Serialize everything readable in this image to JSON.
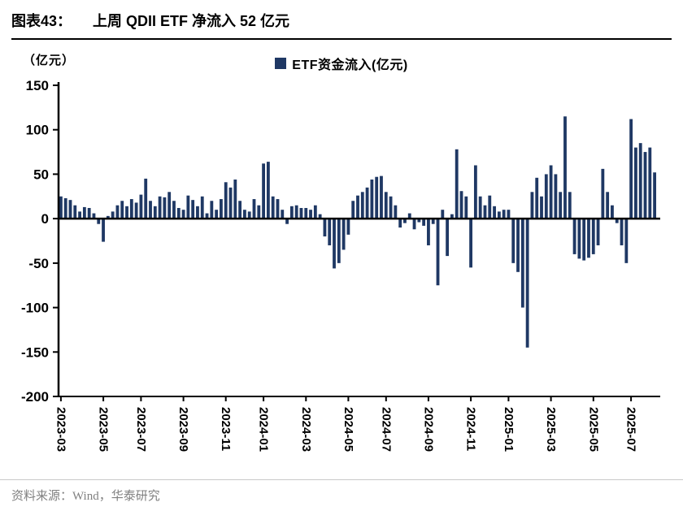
{
  "header": {
    "figure_label": "图表43：",
    "title": "上周 QDII ETF 净流入 52 亿元"
  },
  "chart": {
    "unit_label": "（亿元）",
    "legend_label": "ETF资金流入(亿元)"
  },
  "footer": {
    "source": "资料来源：Wind，华泰研究"
  },
  "chart_data": {
    "type": "bar",
    "title": "上周QDII ETF净流入52亿元",
    "series_name": "ETF资金流入(亿元)",
    "ylabel": "（亿元）",
    "ylim": [
      -200,
      150
    ],
    "y_ticks": [
      150,
      100,
      50,
      0,
      -50,
      -100,
      -150,
      -200
    ],
    "x_frequency": "weekly",
    "grid": false,
    "legend_position": "top-center",
    "bar_color": "#1F3864",
    "x_tick_labels": [
      "2023-03",
      "2023-05",
      "2023-07",
      "2023-09",
      "2023-11",
      "2024-01",
      "2024-03",
      "2024-05",
      "2024-07",
      "2024-09",
      "2024-11",
      "2025-01",
      "2025-03",
      "2025-05",
      "2025-07"
    ],
    "x_tick_week_index": [
      0,
      9,
      17,
      26,
      35,
      43,
      52,
      61,
      69,
      78,
      87,
      95,
      104,
      113,
      121
    ],
    "values": [
      25,
      23,
      21,
      15,
      8,
      13,
      12,
      6,
      -6,
      -26,
      3,
      8,
      15,
      20,
      14,
      22,
      18,
      27,
      45,
      20,
      14,
      25,
      24,
      30,
      20,
      12,
      10,
      26,
      21,
      14,
      25,
      6,
      20,
      10,
      22,
      41,
      35,
      44,
      20,
      10,
      8,
      22,
      15,
      62,
      64,
      25,
      22,
      10,
      -6,
      14,
      15,
      12,
      12,
      10,
      15,
      5,
      -20,
      -30,
      -56,
      -50,
      -35,
      -18,
      20,
      26,
      30,
      35,
      44,
      47,
      48,
      30,
      25,
      15,
      -10,
      -5,
      6,
      -12,
      -4,
      -8,
      -30,
      -6,
      -75,
      10,
      -42,
      5,
      78,
      31,
      25,
      -55,
      60,
      25,
      15,
      26,
      14,
      8,
      10,
      10,
      -50,
      -60,
      -100,
      -145,
      30,
      46,
      25,
      50,
      60,
      50,
      30,
      115,
      30,
      -40,
      -45,
      -47,
      -44,
      -40,
      -30,
      56,
      30,
      15,
      -5,
      -30,
      -50,
      112,
      80,
      85,
      75,
      80,
      52
    ]
  }
}
